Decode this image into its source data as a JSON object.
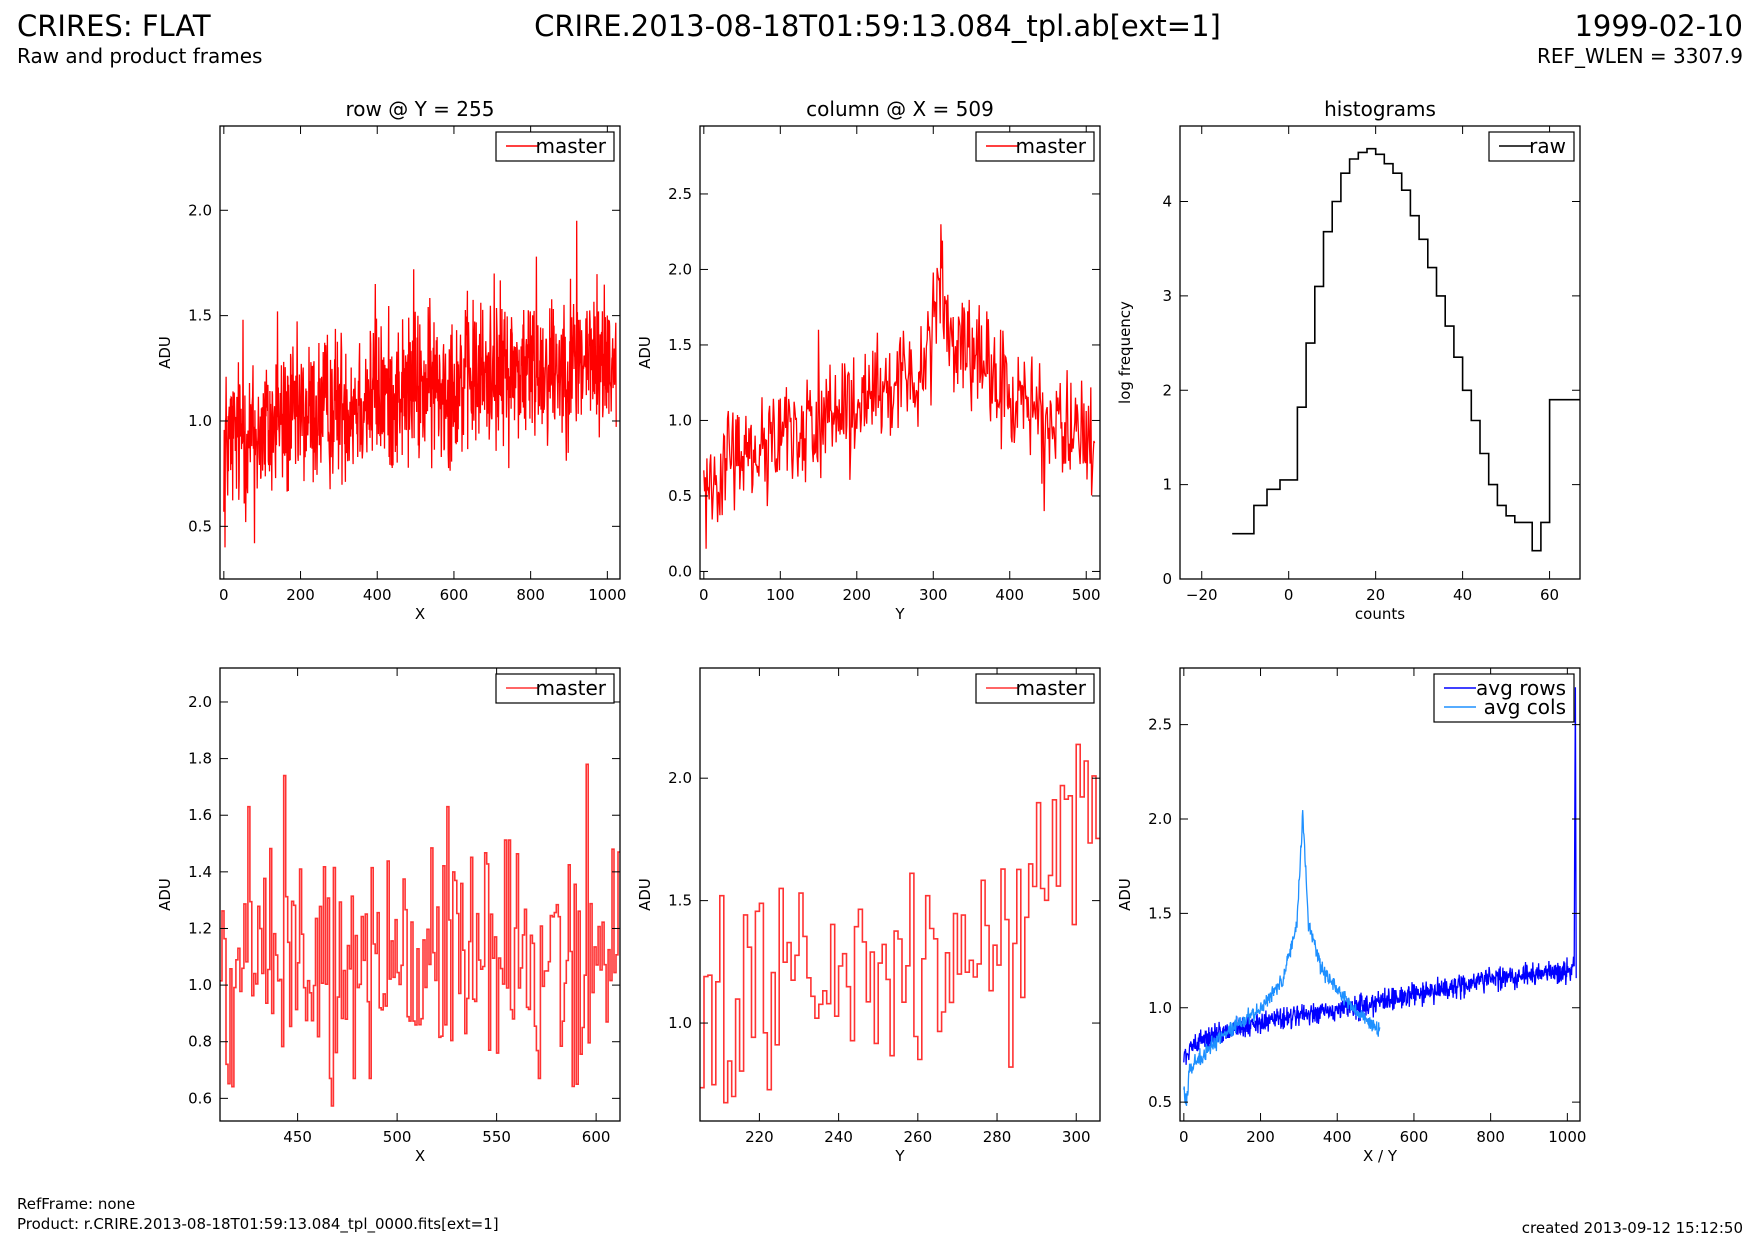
{
  "header": {
    "title_left": "CRIRES: FLAT",
    "subtitle_left": "Raw and product frames",
    "title_center": "CRIRE.2013-08-18T01:59:13.084_tpl.ab[ext=1]",
    "title_right": "1999-02-10",
    "subtitle_right": "REF_WLEN = 3307.9"
  },
  "footer": {
    "ref_frame": "RefFrame: none",
    "product": "Product: r.CRIRE.2013-08-18T01:59:13.084_tpl_0000.fits[ext=1]",
    "created": "created 2013-09-12 15:12:50"
  },
  "colors": {
    "master": "#ff0000",
    "master_zoom": "#ff3333",
    "raw": "#000000",
    "avg_rows": "#0000ff",
    "avg_cols": "#1e90ff"
  },
  "chart_data": [
    {
      "id": "row",
      "type": "line",
      "title": "row @ Y = 255",
      "xlabel": "X",
      "ylabel": "ADU",
      "xlim": [
        -10,
        1033
      ],
      "ylim": [
        0.25,
        2.4
      ],
      "xticks": [
        0,
        200,
        400,
        600,
        800,
        1000
      ],
      "yticks": [
        0.5,
        1.0,
        1.5,
        2.0
      ],
      "ytick_format": 1,
      "legend": "top-right",
      "series": [
        {
          "name": "master",
          "color": "#ff0000",
          "x_range": [
            0,
            1023
          ],
          "trend_points": [
            [
              0,
              0.9
            ],
            [
              100,
              0.95
            ],
            [
              300,
              1.08
            ],
            [
              500,
              1.15
            ],
            [
              700,
              1.22
            ],
            [
              900,
              1.28
            ],
            [
              1023,
              1.3
            ]
          ],
          "spread": 0.18,
          "n": 1024,
          "peaks": [
            [
              3,
              0.4
            ],
            [
              50,
              1.48
            ],
            [
              80,
              0.42
            ],
            [
              140,
              1.52
            ],
            [
              395,
              1.65
            ],
            [
              495,
              1.72
            ],
            [
              705,
              1.7
            ],
            [
              815,
              1.78
            ],
            [
              920,
              1.95
            ]
          ]
        }
      ]
    },
    {
      "id": "column",
      "type": "line",
      "title": "column @ X = 509",
      "xlabel": "Y",
      "ylabel": "ADU",
      "xlim": [
        -5,
        518
      ],
      "ylim": [
        -0.05,
        2.95
      ],
      "xticks": [
        0,
        100,
        200,
        300,
        400,
        500
      ],
      "yticks": [
        0.0,
        0.5,
        1.0,
        1.5,
        2.0,
        2.5
      ],
      "ytick_format": 1,
      "legend": "top-right",
      "series": [
        {
          "name": "master",
          "color": "#ff0000",
          "x_range": [
            0,
            511
          ],
          "trend_points": [
            [
              0,
              0.55
            ],
            [
              20,
              0.7
            ],
            [
              100,
              0.9
            ],
            [
              200,
              1.05
            ],
            [
              280,
              1.3
            ],
            [
              300,
              1.65
            ],
            [
              310,
              1.95
            ],
            [
              320,
              1.55
            ],
            [
              380,
              1.25
            ],
            [
              450,
              1.0
            ],
            [
              511,
              0.85
            ]
          ],
          "spread": 0.18,
          "n": 512,
          "peaks": [
            [
              3,
              0.15
            ],
            [
              150,
              1.6
            ],
            [
              300,
              1.98
            ],
            [
              310,
              2.3
            ],
            [
              445,
              0.4
            ]
          ]
        }
      ]
    },
    {
      "id": "histogram",
      "type": "line",
      "title": "histograms",
      "xlabel": "counts",
      "ylabel": "log frequency",
      "xlim": [
        -25,
        67
      ],
      "ylim": [
        0,
        4.8
      ],
      "xticks": [
        -20,
        0,
        20,
        40,
        60
      ],
      "yticks": [
        0,
        1,
        2,
        3,
        4
      ],
      "ytick_format": 0,
      "legend": "top-right",
      "series": [
        {
          "name": "raw",
          "color": "#000000",
          "step": true,
          "x": [
            -13,
            -8,
            -5,
            -2,
            2,
            4,
            6,
            8,
            10,
            12,
            14,
            16,
            18,
            20,
            22,
            24,
            26,
            28,
            30,
            32,
            34,
            36,
            38,
            40,
            42,
            44,
            46,
            48,
            50,
            52,
            54,
            56,
            58,
            60,
            62,
            64,
            67
          ],
          "y": [
            0.48,
            0.78,
            0.95,
            1.05,
            1.82,
            2.5,
            3.1,
            3.68,
            4.0,
            4.3,
            4.45,
            4.52,
            4.56,
            4.5,
            4.4,
            4.3,
            4.12,
            3.85,
            3.6,
            3.3,
            3.0,
            2.68,
            2.35,
            2.0,
            1.68,
            1.33,
            1.0,
            0.78,
            0.67,
            0.6,
            0.6,
            0.3,
            0.6,
            1.9,
            1.9,
            1.9,
            1.9
          ]
        }
      ]
    },
    {
      "id": "row_zoom",
      "type": "line",
      "title": "",
      "xlabel": "X",
      "ylabel": "ADU",
      "xlim": [
        411,
        612
      ],
      "ylim": [
        0.52,
        2.12
      ],
      "xticks": [
        450,
        500,
        550,
        600
      ],
      "yticks": [
        0.6,
        0.8,
        1.0,
        1.2,
        1.4,
        1.6,
        1.8,
        2.0
      ],
      "ytick_format": 1,
      "legend": "top-right",
      "series": [
        {
          "name": "master",
          "color": "#ff3333",
          "step": true,
          "x_range": [
            411,
            611
          ],
          "trend_points": [
            [
              411,
              1.08
            ],
            [
              612,
              1.12
            ]
          ],
          "spread": 0.2,
          "n": 201,
          "peaks": [
            [
              425,
              1.63
            ],
            [
              443,
              1.74
            ],
            [
              451,
              1.41
            ],
            [
              478,
              0.67
            ],
            [
              486,
              0.67
            ],
            [
              525,
              1.63
            ],
            [
              546,
              0.77
            ],
            [
              590,
              0.65
            ],
            [
              595,
              1.78
            ],
            [
              611,
              1.47
            ]
          ]
        }
      ]
    },
    {
      "id": "column_zoom",
      "type": "line",
      "title": "",
      "xlabel": "Y",
      "ylabel": "ADU",
      "xlim": [
        205,
        306
      ],
      "ylim": [
        0.6,
        2.45
      ],
      "xticks": [
        220,
        240,
        260,
        280,
        300
      ],
      "yticks": [
        1.0,
        1.5,
        2.0
      ],
      "ytick_format": 1,
      "legend": "top-right",
      "series": [
        {
          "name": "master",
          "color": "#ff3333",
          "step": true,
          "x_range": [
            205,
            305
          ],
          "trend_points": [
            [
              205,
              1.1
            ],
            [
              240,
              1.15
            ],
            [
              270,
              1.25
            ],
            [
              285,
              1.35
            ],
            [
              295,
              1.75
            ],
            [
              305,
              1.85
            ]
          ],
          "spread": 0.2,
          "n": 101,
          "peaks": [
            [
              210,
              1.52
            ],
            [
              213,
              0.7
            ],
            [
              225,
              1.55
            ],
            [
              262,
              1.52
            ],
            [
              283,
              0.82
            ],
            [
              290,
              1.9
            ],
            [
              302,
              2.07
            ]
          ]
        }
      ]
    },
    {
      "id": "averages",
      "type": "line",
      "title": "",
      "xlabel": "X / Y",
      "ylabel": "ADU",
      "xlim": [
        -10,
        1033
      ],
      "ylim": [
        0.4,
        2.8
      ],
      "xticks": [
        0,
        200,
        400,
        600,
        800,
        1000
      ],
      "yticks": [
        0.5,
        1.0,
        1.5,
        2.0,
        2.5
      ],
      "ytick_format": 1,
      "legend": "top-right",
      "series": [
        {
          "name": "avg rows",
          "color": "#0000ff",
          "x_range": [
            0,
            1023
          ],
          "trend_points": [
            [
              0,
              0.75
            ],
            [
              40,
              0.83
            ],
            [
              150,
              0.9
            ],
            [
              300,
              0.96
            ],
            [
              450,
              1.0
            ],
            [
              600,
              1.07
            ],
            [
              800,
              1.15
            ],
            [
              1010,
              1.2
            ],
            [
              1018,
              1.25
            ],
            [
              1021,
              2.7
            ],
            [
              1023,
              1.2
            ]
          ],
          "spread": 0.03,
          "n": 1024
        },
        {
          "name": "avg cols",
          "color": "#1e90ff",
          "x_range": [
            0,
            511
          ],
          "trend_points": [
            [
              0,
              0.55
            ],
            [
              8,
              0.5
            ],
            [
              15,
              0.68
            ],
            [
              100,
              0.85
            ],
            [
              200,
              1.0
            ],
            [
              260,
              1.15
            ],
            [
              295,
              1.45
            ],
            [
              310,
              2.02
            ],
            [
              325,
              1.45
            ],
            [
              360,
              1.2
            ],
            [
              430,
              1.02
            ],
            [
              511,
              0.88
            ]
          ],
          "spread": 0.02,
          "n": 512
        }
      ]
    }
  ]
}
